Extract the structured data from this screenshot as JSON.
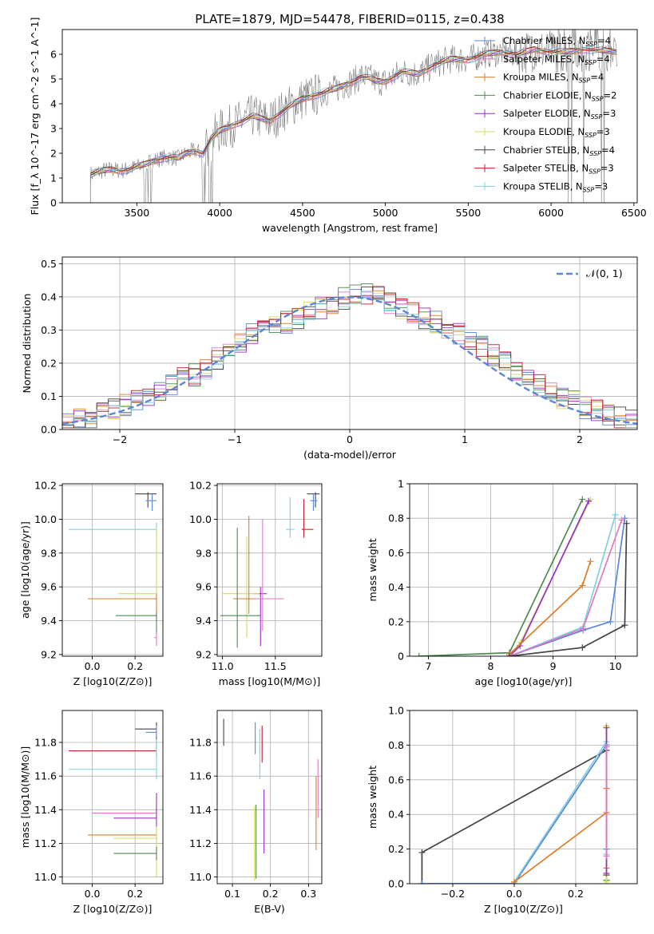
{
  "figure": {
    "title": "PLATE=1879, MJD=54478, FIBERID=0115, z=0.438"
  },
  "colors": {
    "chabrier_miles": "#5b86d8",
    "salpeter_miles": "#e377c2",
    "kroupa_miles": "#e07b25",
    "chabrier_elodie": "#4f8a4f",
    "salpeter_elodie": "#9b30c8",
    "kroupa_elodie": "#d6dc5a",
    "chabrier_stelib": "#444444",
    "salpeter_stelib": "#c0202a",
    "kroupa_stelib": "#7fd0e0",
    "data_spectrum": "#808080",
    "normal_curve": "#5b86d8",
    "grid": "#b0b0b0"
  },
  "legend_labels": [
    {
      "key": "chabrier_miles",
      "imf": "Chabrier",
      "lib": "MILES",
      "n": "4"
    },
    {
      "key": "salpeter_miles",
      "imf": "Salpeter",
      "lib": "MILES",
      "n": "4"
    },
    {
      "key": "kroupa_miles",
      "imf": "Kroupa",
      "lib": "MILES",
      "n": "4"
    },
    {
      "key": "chabrier_elodie",
      "imf": "Chabrier",
      "lib": "ELODIE",
      "n": "2"
    },
    {
      "key": "salpeter_elodie",
      "imf": "Salpeter",
      "lib": "ELODIE",
      "n": "3"
    },
    {
      "key": "kroupa_elodie",
      "imf": "Kroupa",
      "lib": "ELODIE",
      "n": "3"
    },
    {
      "key": "chabrier_stelib",
      "imf": "Chabrier",
      "lib": "STELIB",
      "n": "4"
    },
    {
      "key": "salpeter_stelib",
      "imf": "Salpeter",
      "lib": "STELIB",
      "n": "3"
    },
    {
      "key": "kroupa_stelib",
      "imf": "Kroupa",
      "lib": "STELIB",
      "n": "3"
    }
  ],
  "chart_data": [
    {
      "id": "spectrum",
      "type": "line",
      "xlabel": "wavelength [Angstrom, rest frame]",
      "ylabel": "Flux [f_λ 10^-17 erg cm^-2 s^-1 A^-1]",
      "xlim": [
        3050,
        6520
      ],
      "ylim": [
        0,
        7
      ],
      "xticks": [
        3500,
        4000,
        4500,
        5000,
        5500,
        6000,
        6500
      ],
      "yticks": [
        0,
        1,
        2,
        3,
        4,
        5,
        6
      ],
      "grid": false,
      "legend_position": "top-right",
      "model_continuum": {
        "x": [
          3220,
          3300,
          3350,
          3400,
          3450,
          3500,
          3550,
          3600,
          3650,
          3700,
          3750,
          3800,
          3850,
          3900,
          3950,
          4000,
          4100,
          4200,
          4300,
          4400,
          4500,
          4600,
          4700,
          4800,
          4850,
          4900,
          4950,
          5000,
          5100,
          5200,
          5300,
          5400,
          5500,
          5600,
          5700,
          5800,
          5900,
          6000,
          6100,
          6200,
          6300,
          6400
        ],
        "y": [
          1.15,
          1.3,
          1.35,
          1.3,
          1.35,
          1.45,
          1.55,
          1.7,
          1.8,
          1.85,
          1.8,
          2.0,
          2.1,
          2.0,
          2.6,
          2.9,
          3.2,
          3.5,
          3.3,
          3.8,
          4.2,
          4.4,
          4.6,
          4.9,
          5.1,
          5.05,
          4.9,
          4.9,
          5.3,
          5.2,
          5.6,
          5.8,
          5.8,
          6.0,
          6.1,
          6.0,
          6.2,
          6.1,
          6.1,
          6.2,
          6.15,
          6.1
        ]
      }
    },
    {
      "id": "residuals",
      "type": "line",
      "xlabel": "(data-model)/error",
      "ylabel": "Normed distribution",
      "xlim": [
        -2.5,
        2.5
      ],
      "ylim": [
        0,
        0.52
      ],
      "xticks": [
        -2,
        -1,
        0,
        1,
        2
      ],
      "yticks": [
        0.0,
        0.1,
        0.2,
        0.3,
        0.4,
        0.5
      ],
      "grid": true,
      "legend_position": "top-right",
      "legend_label": "𝒩(0, 1)",
      "histogram_envelope": {
        "x": [
          -2.5,
          -2.3,
          -2.1,
          -1.9,
          -1.7,
          -1.5,
          -1.3,
          -1.1,
          -0.9,
          -0.7,
          -0.5,
          -0.3,
          -0.1,
          0.1,
          0.3,
          0.5,
          0.7,
          0.9,
          1.1,
          1.3,
          1.5,
          1.7,
          1.9,
          2.1,
          2.3,
          2.5
        ],
        "y": [
          0.02,
          0.03,
          0.05,
          0.08,
          0.11,
          0.15,
          0.17,
          0.23,
          0.28,
          0.3,
          0.33,
          0.36,
          0.39,
          0.42,
          0.39,
          0.36,
          0.33,
          0.3,
          0.26,
          0.21,
          0.17,
          0.12,
          0.09,
          0.06,
          0.04,
          0.02
        ]
      }
    },
    {
      "id": "age_vs_Z",
      "type": "scatter",
      "xlabel": "Z [log10(Z/Z⊙)]",
      "ylabel": "age [log10(age/yr)]",
      "xlim": [
        -0.14,
        0.33
      ],
      "ylim": [
        9.19,
        10.21
      ],
      "xticks": [
        0.0,
        0.2
      ],
      "yticks": [
        9.2,
        9.4,
        9.6,
        9.8,
        10.0,
        10.2
      ],
      "grid": true,
      "points": [
        {
          "s": "chabrier_stelib",
          "x": 0.26,
          "y": 10.15,
          "xe": [
            0.2,
            0.3
          ],
          "ye": [
            10.07,
            10.16
          ]
        },
        {
          "s": "chabrier_miles",
          "x": 0.28,
          "y": 10.11,
          "xe": [
            0.25,
            0.3
          ],
          "ye": [
            10.05,
            10.15
          ]
        },
        {
          "s": "kroupa_stelib",
          "x": 0.3,
          "y": 9.94,
          "xe": [
            -0.11,
            0.3
          ],
          "ye": [
            9.9,
            9.98
          ]
        },
        {
          "s": "kroupa_elodie",
          "x": 0.3,
          "y": 9.56,
          "xe": [
            0.12,
            0.3
          ],
          "ye": [
            9.45,
            9.95
          ]
        },
        {
          "s": "kroupa_miles",
          "x": 0.3,
          "y": 9.53,
          "xe": [
            -0.02,
            0.3
          ],
          "ye": [
            9.4,
            9.56
          ]
        },
        {
          "s": "chabrier_elodie",
          "x": 0.3,
          "y": 9.43,
          "xe": [
            0.11,
            0.3
          ],
          "ye": [
            9.3,
            9.45
          ]
        },
        {
          "s": "salpeter_miles",
          "x": 0.3,
          "y": 9.3,
          "xe": [
            0.29,
            0.3
          ],
          "ye": [
            9.25,
            9.33
          ]
        }
      ]
    },
    {
      "id": "age_vs_mass",
      "type": "scatter",
      "xlabel": "mass [log10(M/M⊙)]",
      "ylabel": "",
      "xlim": [
        10.95,
        11.94
      ],
      "ylim": [
        9.19,
        10.21
      ],
      "xticks": [
        11.0,
        11.5
      ],
      "yticks": [
        9.2,
        9.4,
        9.6,
        9.8,
        10.0,
        10.2
      ],
      "grid": true,
      "points": [
        {
          "s": "chabrier_stelib",
          "x": 11.88,
          "y": 10.15,
          "xe": [
            11.8,
            11.92
          ],
          "ye": [
            10.07,
            10.16
          ]
        },
        {
          "s": "chabrier_miles",
          "x": 11.86,
          "y": 10.11,
          "xe": [
            11.83,
            11.9
          ],
          "ye": [
            10.05,
            10.15
          ]
        },
        {
          "s": "salpeter_stelib",
          "x": 11.77,
          "y": 9.94,
          "xe": [
            11.75,
            11.86
          ],
          "ye": [
            9.89,
            10.12
          ]
        },
        {
          "s": "kroupa_stelib",
          "x": 11.64,
          "y": 9.94,
          "xe": [
            11.6,
            11.68
          ],
          "ye": [
            9.89,
            10.13
          ]
        },
        {
          "s": "salpeter_elodie",
          "x": 11.36,
          "y": 9.56,
          "xe": [
            11.3,
            11.42
          ],
          "ye": [
            9.25,
            9.6
          ]
        },
        {
          "s": "kroupa_elodie",
          "x": 11.23,
          "y": 9.56,
          "xe": [
            11.0,
            11.35
          ],
          "ye": [
            9.3,
            9.9
          ]
        },
        {
          "s": "kroupa_miles",
          "x": 11.25,
          "y": 9.53,
          "xe": [
            11.1,
            11.5
          ],
          "ye": [
            9.44,
            10.02
          ]
        },
        {
          "s": "salpeter_miles",
          "x": 11.38,
          "y": 9.53,
          "xe": [
            11.3,
            11.58
          ],
          "ye": [
            9.34,
            10.0
          ]
        },
        {
          "s": "chabrier_elodie",
          "x": 11.14,
          "y": 9.43,
          "xe": [
            10.98,
            11.36
          ],
          "ye": [
            9.24,
            9.95
          ]
        }
      ]
    },
    {
      "id": "weight_vs_age",
      "type": "line",
      "xlabel": "age [log10(age/yr)]",
      "ylabel": "mass weight",
      "xlim": [
        6.7,
        10.35
      ],
      "ylim": [
        0,
        1.0
      ],
      "xticks": [
        7,
        8,
        9,
        10
      ],
      "yticks": [
        0.0,
        0.2,
        0.4,
        0.6,
        0.8,
        1.0
      ],
      "grid": true,
      "series": [
        {
          "s": "chabrier_elodie",
          "x": [
            6.85,
            8.3,
            9.47
          ],
          "y": [
            0.0,
            0.02,
            0.91
          ]
        },
        {
          "s": "kroupa_elodie",
          "x": [
            8.3,
            8.48,
            9.6
          ],
          "y": [
            0.0,
            0.08,
            0.91
          ]
        },
        {
          "s": "salpeter_elodie",
          "x": [
            8.3,
            8.47,
            9.57
          ],
          "y": [
            0.0,
            0.06,
            0.9
          ]
        },
        {
          "s": "kroupa_miles",
          "x": [
            8.3,
            9.47,
            9.6
          ],
          "y": [
            0.01,
            0.41,
            0.55
          ]
        },
        {
          "s": "kroupa_stelib",
          "x": [
            8.3,
            9.48,
            10.0
          ],
          "y": [
            0.0,
            0.17,
            0.82
          ]
        },
        {
          "s": "chabrier_miles",
          "x": [
            8.3,
            9.48,
            9.92,
            10.15
          ],
          "y": [
            0.0,
            0.15,
            0.2,
            0.8
          ]
        },
        {
          "s": "salpeter_miles",
          "x": [
            8.3,
            9.48,
            10.1
          ],
          "y": [
            0.0,
            0.16,
            0.79
          ]
        },
        {
          "s": "chabrier_stelib",
          "x": [
            8.3,
            9.47,
            10.15,
            10.18
          ],
          "y": [
            0.0,
            0.05,
            0.18,
            0.77
          ]
        }
      ]
    },
    {
      "id": "mass_vs_Z",
      "type": "scatter",
      "xlabel": "Z [log10(Z/Z⊙)]",
      "ylabel": "mass [log10(M/M⊙)]",
      "xlim": [
        -0.14,
        0.33
      ],
      "ylim": [
        10.96,
        11.99
      ],
      "xticks": [
        0.0,
        0.2
      ],
      "yticks": [
        11.0,
        11.2,
        11.4,
        11.6,
        11.8
      ],
      "grid": true,
      "points": [
        {
          "s": "chabrier_stelib",
          "x": 0.3,
          "y": 11.88,
          "xe": [
            0.2,
            0.3
          ],
          "ye": [
            11.8,
            11.92
          ]
        },
        {
          "s": "chabrier_miles",
          "x": 0.3,
          "y": 11.86,
          "xe": [
            0.25,
            0.3
          ],
          "ye": [
            11.83,
            11.9
          ]
        },
        {
          "s": "salpeter_stelib",
          "x": 0.3,
          "y": 11.75,
          "xe": [
            -0.11,
            0.3
          ],
          "ye": [
            11.72,
            11.8
          ]
        },
        {
          "s": "kroupa_stelib",
          "x": 0.3,
          "y": 11.64,
          "xe": [
            -0.11,
            0.3
          ],
          "ye": [
            11.58,
            11.82
          ]
        },
        {
          "s": "salpeter_miles",
          "x": 0.3,
          "y": 11.38,
          "xe": [
            0.0,
            0.3
          ],
          "ye": [
            11.3,
            11.45
          ]
        },
        {
          "s": "salpeter_elodie",
          "x": 0.3,
          "y": 11.35,
          "xe": [
            0.1,
            0.3
          ],
          "ye": [
            11.3,
            11.5
          ]
        },
        {
          "s": "kroupa_miles",
          "x": 0.3,
          "y": 11.25,
          "xe": [
            -0.02,
            0.3
          ],
          "ye": [
            11.2,
            11.3
          ]
        },
        {
          "s": "kroupa_elodie",
          "x": 0.3,
          "y": 11.23,
          "xe": [
            0.1,
            0.3
          ],
          "ye": [
            11.0,
            11.3
          ]
        },
        {
          "s": "chabrier_elodie",
          "x": 0.3,
          "y": 11.14,
          "xe": [
            0.1,
            0.3
          ],
          "ye": [
            11.1,
            11.18
          ]
        }
      ]
    },
    {
      "id": "mass_vs_ebv",
      "type": "scatter",
      "xlabel": "E(B-V)",
      "ylabel": "",
      "xlim": [
        0.06,
        0.335
      ],
      "ylim": [
        10.96,
        11.99
      ],
      "xticks": [
        0.1,
        0.2,
        0.3
      ],
      "yticks": [
        11.0,
        11.2,
        11.4,
        11.6,
        11.8
      ],
      "grid": true,
      "points": [
        {
          "s": "chabrier_stelib",
          "x": 0.077,
          "y": 11.86,
          "xe": [
            0.077,
            0.077
          ],
          "ye": [
            11.78,
            11.94
          ]
        },
        {
          "s": "chabrier_miles",
          "x": 0.16,
          "y": 11.85,
          "xe": [
            0.16,
            0.16
          ],
          "ye": [
            11.73,
            11.92
          ]
        },
        {
          "s": "salpeter_stelib",
          "x": 0.178,
          "y": 11.8,
          "xe": [
            0.178,
            0.178
          ],
          "ye": [
            11.68,
            11.9
          ]
        },
        {
          "s": "kroupa_stelib",
          "x": 0.172,
          "y": 11.75,
          "xe": [
            0.172,
            0.172
          ],
          "ye": [
            11.58,
            11.88
          ]
        },
        {
          "s": "salpeter_elodie",
          "x": 0.183,
          "y": 11.3,
          "xe": [
            0.183,
            0.183
          ],
          "ye": [
            11.14,
            11.52
          ]
        },
        {
          "s": "chabrier_elodie",
          "x": 0.162,
          "y": 11.15,
          "xe": [
            0.162,
            0.162
          ],
          "ye": [
            10.99,
            11.43
          ]
        },
        {
          "s": "kroupa_elodie",
          "x": 0.158,
          "y": 11.15,
          "xe": [
            0.158,
            0.158
          ],
          "ye": [
            10.98,
            11.42
          ]
        },
        {
          "s": "salpeter_miles",
          "x": 0.325,
          "y": 11.55,
          "xe": [
            0.325,
            0.325
          ],
          "ye": [
            11.35,
            11.7
          ]
        },
        {
          "s": "kroupa_miles",
          "x": 0.32,
          "y": 11.4,
          "xe": [
            0.32,
            0.32
          ],
          "ye": [
            11.16,
            11.6
          ]
        }
      ]
    },
    {
      "id": "weight_vs_Z",
      "type": "line",
      "xlabel": "Z [log10(Z/Z⊙)]",
      "ylabel": "mass weight",
      "xlim": [
        -0.34,
        0.4
      ],
      "ylim": [
        0,
        1.0
      ],
      "xticks": [
        -0.2,
        0.0,
        0.2
      ],
      "yticks": [
        0.0,
        0.2,
        0.4,
        0.6,
        0.8,
        1.0
      ],
      "grid": true,
      "series": [
        {
          "s": "chabrier_stelib",
          "x": [
            -0.3,
            -0.3,
            0.3,
            0.3
          ],
          "y": [
            0.0,
            0.18,
            0.77,
            0.05
          ]
        },
        {
          "s": "chabrier_miles",
          "x": [
            -0.3,
            0.0,
            0.3,
            0.3
          ],
          "y": [
            0.0,
            0.0,
            0.8,
            0.2
          ]
        },
        {
          "s": "kroupa_stelib",
          "x": [
            0.0,
            0.3,
            0.3
          ],
          "y": [
            0.01,
            0.82,
            0.17
          ]
        },
        {
          "s": "kroupa_miles",
          "x": [
            0.0,
            0.3,
            0.3,
            0.3
          ],
          "y": [
            0.01,
            0.41,
            0.55,
            0.09
          ]
        },
        {
          "s": "chabrier_elodie",
          "x": [
            0.3,
            0.3
          ],
          "y": [
            0.02,
            0.91
          ]
        },
        {
          "s": "kroupa_elodie",
          "x": [
            0.3,
            0.3
          ],
          "y": [
            0.01,
            0.91
          ]
        },
        {
          "s": "salpeter_elodie",
          "x": [
            0.3,
            0.3
          ],
          "y": [
            0.06,
            0.9
          ]
        },
        {
          "s": "salpeter_miles",
          "x": [
            0.3,
            0.3
          ],
          "y": [
            0.16,
            0.79
          ]
        }
      ]
    }
  ]
}
